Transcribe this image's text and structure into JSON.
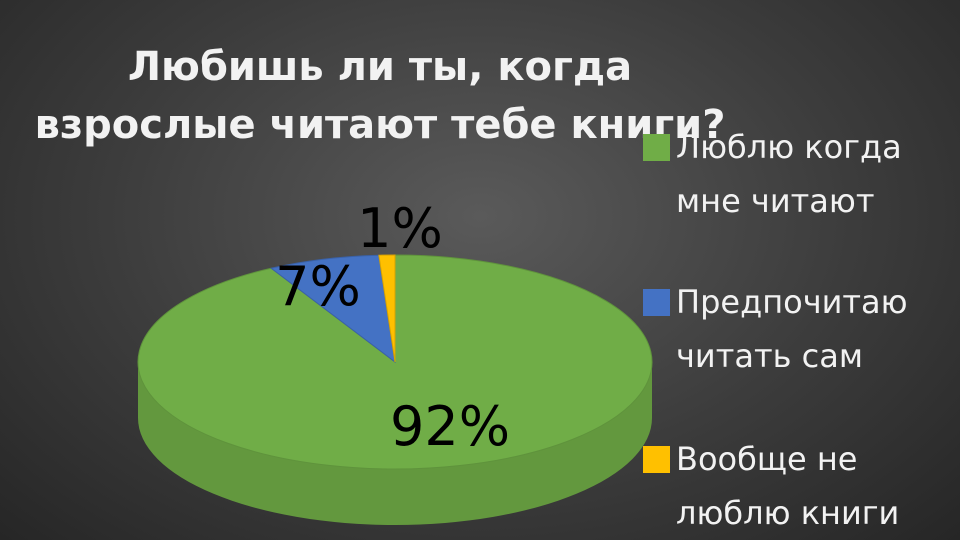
{
  "title_lines": [
    "Любишь ли ты, когда",
    "взрослые читают тебе книги?"
  ],
  "chart_data": {
    "type": "pie",
    "style": "3d",
    "title": "Любишь ли ты, когда взрослые читают тебе книги?",
    "legend_position": "right",
    "slices": [
      {
        "name_lines": [
          "Люблю когда",
          "мне читают"
        ],
        "name": "Люблю когда мне читают",
        "value": 92,
        "label": "92%",
        "color": "#70ad47"
      },
      {
        "name_lines": [
          "Предпочитаю",
          "читать сам"
        ],
        "name": "Предпочитаю читать сам",
        "value": 7,
        "label": "7%",
        "color": "#4472c4"
      },
      {
        "name_lines": [
          "Вообще не",
          "люблю книги"
        ],
        "name": "Вообще не люблю книги",
        "value": 1,
        "label": "1%",
        "color": "#ffc000"
      }
    ]
  }
}
